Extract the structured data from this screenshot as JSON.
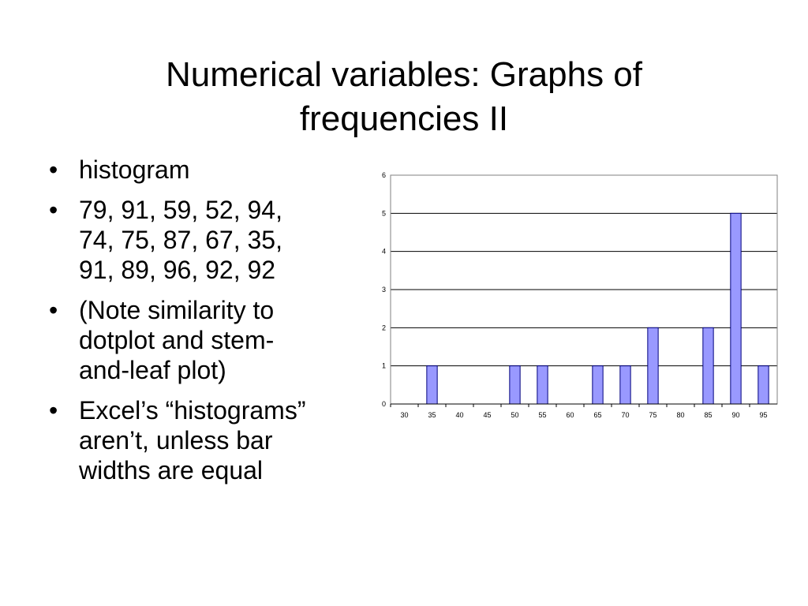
{
  "slide": {
    "title_lines": [
      "Numerical variables: Graphs of",
      "frequencies II"
    ],
    "bullets": [
      {
        "lines": [
          "histogram"
        ]
      },
      {
        "lines": [
          "79, 91, 59, 52, 94,",
          "74, 75, 87, 67, 35,",
          "91, 89, 96, 92, 92"
        ]
      },
      {
        "lines": [
          "(Note similarity to",
          "dotplot and stem-",
          "and-leaf plot)"
        ]
      },
      {
        "lines": [
          "Excel’s “histograms”",
          "aren’t, unless bar",
          "widths are equal"
        ]
      }
    ]
  },
  "chart_data": {
    "type": "bar",
    "title": "",
    "xlabel": "",
    "ylabel": "",
    "categories": [
      "30",
      "35",
      "40",
      "45",
      "50",
      "55",
      "60",
      "65",
      "70",
      "75",
      "80",
      "85",
      "90",
      "95"
    ],
    "values": [
      0,
      1,
      0,
      0,
      1,
      1,
      0,
      1,
      1,
      2,
      0,
      2,
      5,
      1
    ],
    "ylim": [
      0,
      6
    ],
    "yticks": [
      "0",
      "1",
      "2",
      "3",
      "4",
      "5",
      "6"
    ],
    "grid": "horizontal",
    "legend": "none",
    "colors": {
      "bar_fill": "#9999FF",
      "bar_stroke": "#000080",
      "grid": "#000000"
    }
  }
}
